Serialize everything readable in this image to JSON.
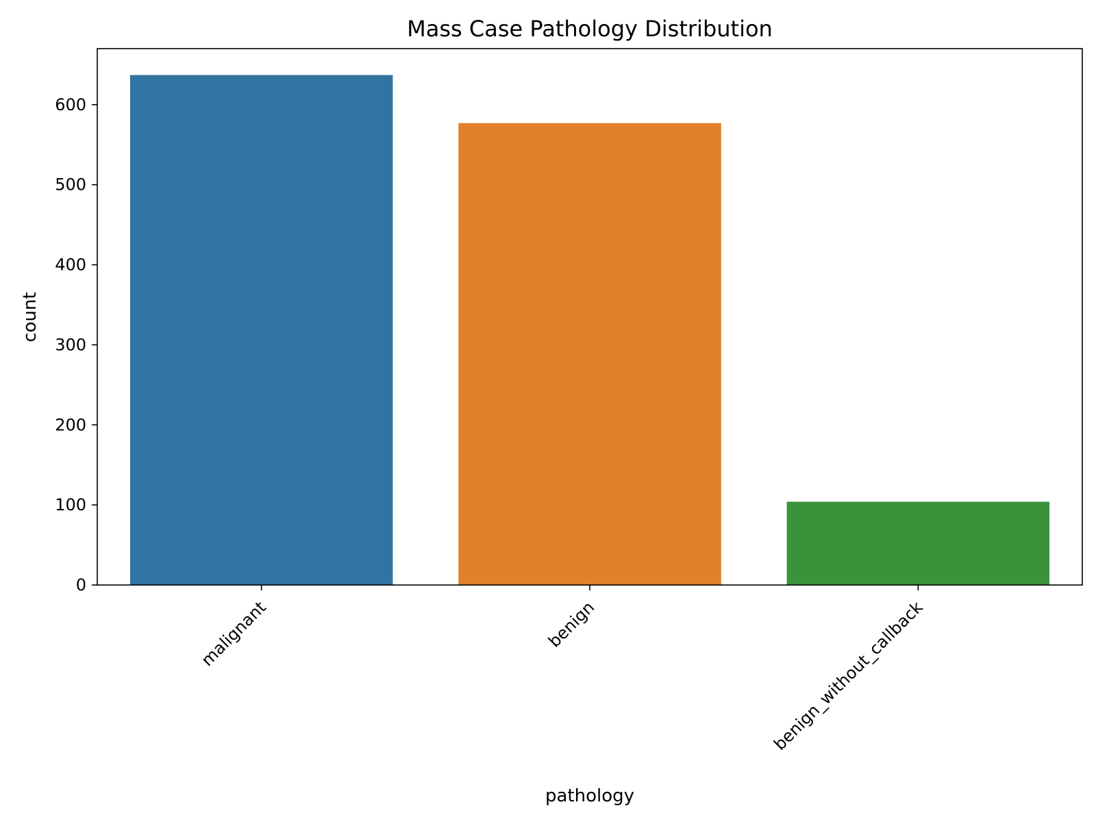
{
  "chart_data": {
    "type": "bar",
    "title": "Mass Case Pathology Distribution",
    "xlabel": "pathology",
    "ylabel": "count",
    "categories": [
      "malignant",
      "benign",
      "benign_without_callback"
    ],
    "values": [
      637,
      577,
      104
    ],
    "colors": [
      "#3274a1",
      "#e1812c",
      "#3a923a"
    ],
    "ylim": [
      0,
      670
    ],
    "yticks": [
      0,
      100,
      200,
      300,
      400,
      500,
      600
    ],
    "grid": false,
    "legend": "none"
  }
}
